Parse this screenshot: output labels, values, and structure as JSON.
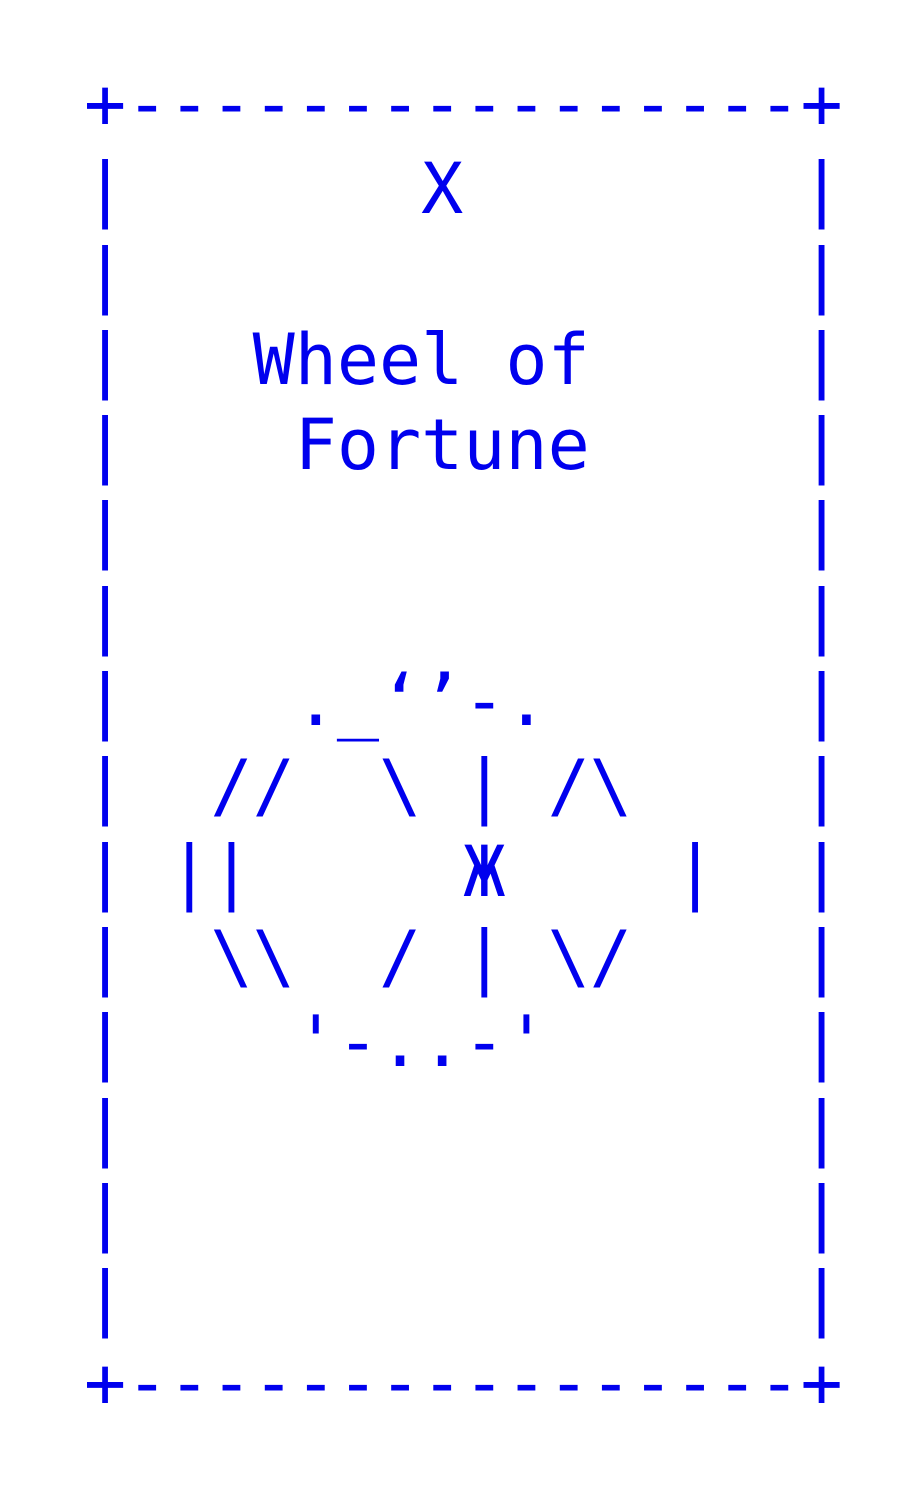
{
  "card": {
    "color": "#0000ee",
    "lines": [
      "+----------------+",
      "|       X        |",
      "|                |",
      "|   Wheel of     |",
      "|    Fortune     |",
      "|                |",
      "|                |",
      "|    ._‘’-.      |",
      "|  //  \\ | /\\    |",
      "| ||     Ж    |  |",
      "|  \\\\  / | \\/    |",
      "|    '-..-'      |",
      "|                |",
      "|                |",
      "|                |",
      "+----------------+"
    ]
  }
}
